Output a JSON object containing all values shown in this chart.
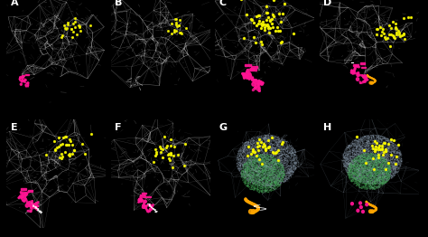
{
  "background_color": "#000000",
  "figure_width": 4.74,
  "figure_height": 2.62,
  "dpi": 100,
  "panels": [
    "A",
    "B",
    "C",
    "D",
    "E",
    "F",
    "G",
    "H"
  ],
  "grid_rows": 2,
  "grid_cols": 4,
  "label_color": "#ffffff",
  "label_fontsize": 8,
  "label_fontweight": "bold",
  "wire_color": "#aaaaaa",
  "wire_alpha": 0.55,
  "wire_linewidth": 0.25,
  "yellow_color": "#ffff00",
  "pink_color": "#ff1493",
  "orange_color": "#ffa500",
  "white_color": "#ffffff",
  "blue_gray_color": "#7799aa",
  "green_color": "#44aa55"
}
